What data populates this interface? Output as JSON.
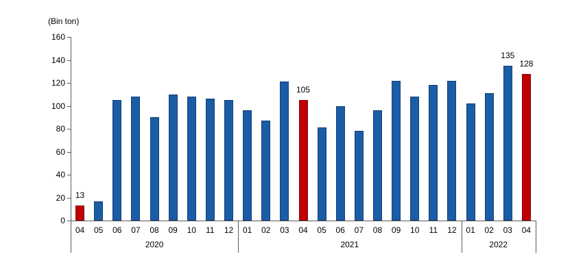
{
  "chart_data": {
    "type": "bar",
    "title": "",
    "unit_label": "(Bin ton)",
    "xlabel": "",
    "ylabel": "(Bin ton)",
    "ylim": [
      0,
      160
    ],
    "ytick_step": 20,
    "grid": false,
    "legend": null,
    "colors": {
      "bar": "#1A5DA6",
      "bar_border": "#123F73",
      "highlight": "#C00000",
      "highlight_border": "#7F0606",
      "axis": "#595959",
      "text": "#000000"
    },
    "groups": [
      {
        "year": "2020",
        "bars": [
          {
            "month": "04",
            "value": 13,
            "highlight": true,
            "label": "13"
          },
          {
            "month": "05",
            "value": 17,
            "highlight": false,
            "label": ""
          },
          {
            "month": "06",
            "value": 105,
            "highlight": false,
            "label": ""
          },
          {
            "month": "07",
            "value": 108,
            "highlight": false,
            "label": ""
          },
          {
            "month": "08",
            "value": 90,
            "highlight": false,
            "label": ""
          },
          {
            "month": "09",
            "value": 110,
            "highlight": false,
            "label": ""
          },
          {
            "month": "10",
            "value": 108,
            "highlight": false,
            "label": ""
          },
          {
            "month": "11",
            "value": 106,
            "highlight": false,
            "label": ""
          },
          {
            "month": "12",
            "value": 105,
            "highlight": false,
            "label": ""
          }
        ]
      },
      {
        "year": "2021",
        "bars": [
          {
            "month": "01",
            "value": 96,
            "highlight": false,
            "label": ""
          },
          {
            "month": "02",
            "value": 87,
            "highlight": false,
            "label": ""
          },
          {
            "month": "03",
            "value": 121,
            "highlight": false,
            "label": ""
          },
          {
            "month": "04",
            "value": 105,
            "highlight": true,
            "label": "105"
          },
          {
            "month": "05",
            "value": 81,
            "highlight": false,
            "label": ""
          },
          {
            "month": "06",
            "value": 100,
            "highlight": false,
            "label": ""
          },
          {
            "month": "07",
            "value": 78,
            "highlight": false,
            "label": ""
          },
          {
            "month": "08",
            "value": 96,
            "highlight": false,
            "label": ""
          },
          {
            "month": "09",
            "value": 122,
            "highlight": false,
            "label": ""
          },
          {
            "month": "10",
            "value": 108,
            "highlight": false,
            "label": ""
          },
          {
            "month": "11",
            "value": 118,
            "highlight": false,
            "label": ""
          },
          {
            "month": "12",
            "value": 122,
            "highlight": false,
            "label": ""
          }
        ]
      },
      {
        "year": "2022",
        "bars": [
          {
            "month": "01",
            "value": 102,
            "highlight": false,
            "label": ""
          },
          {
            "month": "02",
            "value": 111,
            "highlight": false,
            "label": ""
          },
          {
            "month": "03",
            "value": 135,
            "highlight": false,
            "label": "135"
          },
          {
            "month": "04",
            "value": 128,
            "highlight": true,
            "label": "128"
          }
        ]
      }
    ]
  }
}
